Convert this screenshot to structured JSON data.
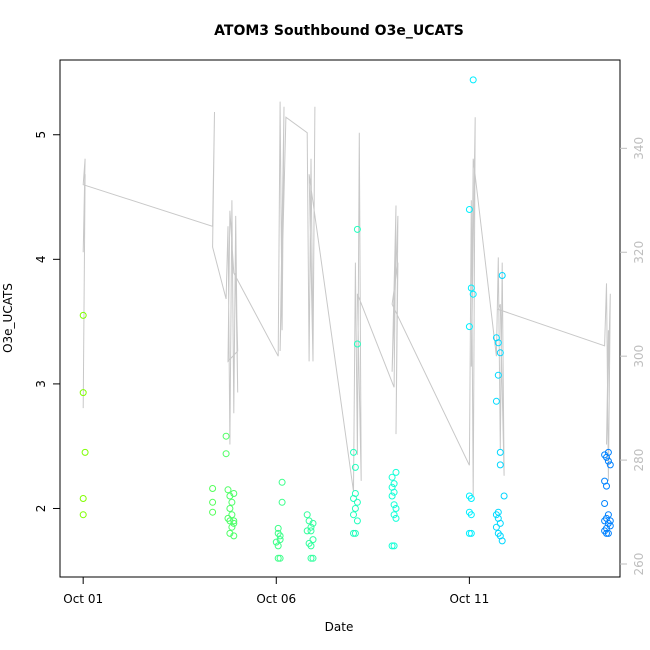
{
  "chart_data": {
    "type": "scatter",
    "title": "ATOM3 Southbound O3e_UCATS",
    "xlabel": "Date",
    "ylabel": "O3e_UCATS",
    "x_ticks": [
      {
        "day": 1,
        "label": "Oct 01"
      },
      {
        "day": 6,
        "label": "Oct 06"
      },
      {
        "day": 11,
        "label": "Oct 11"
      }
    ],
    "y_ticks": [
      2,
      3,
      4,
      5
    ],
    "y2_ticks": [
      260,
      280,
      300,
      320,
      340
    ],
    "xlim": [
      0.4,
      14.9
    ],
    "ylim": [
      1.45,
      5.6
    ],
    "y2lim": [
      257.5,
      357
    ],
    "grid": false,
    "colors": {
      "axis": "#000000",
      "secondary_axis": "#bebebe",
      "altitude_line": "#c8c8c8",
      "points_start": "#80ff00",
      "points_end": "#0080ff"
    },
    "series": [
      {
        "type": "scatter",
        "points": [
          [
            1.0,
            3.55
          ],
          [
            1.0,
            2.93
          ],
          [
            1.05,
            2.45
          ],
          [
            1.0,
            2.08
          ],
          [
            1.0,
            1.95
          ],
          [
            4.35,
            2.16
          ],
          [
            4.35,
            2.05
          ],
          [
            4.35,
            1.97
          ],
          [
            4.7,
            2.58
          ],
          [
            4.7,
            2.44
          ],
          [
            4.75,
            2.15
          ],
          [
            4.8,
            2.1
          ],
          [
            4.85,
            2.05
          ],
          [
            4.8,
            2.0
          ],
          [
            4.85,
            1.95
          ],
          [
            4.75,
            1.92
          ],
          [
            4.8,
            1.9
          ],
          [
            4.9,
            1.9
          ],
          [
            4.85,
            1.85
          ],
          [
            4.8,
            1.8
          ],
          [
            4.9,
            1.78
          ],
          [
            4.9,
            2.12
          ],
          [
            4.9,
            1.88
          ],
          [
            6.05,
            1.8
          ],
          [
            6.1,
            1.75
          ],
          [
            6.0,
            1.73
          ],
          [
            6.05,
            1.7
          ],
          [
            6.1,
            1.78
          ],
          [
            6.05,
            1.84
          ],
          [
            6.1,
            1.6
          ],
          [
            6.05,
            1.6
          ],
          [
            6.15,
            2.21
          ],
          [
            6.15,
            2.05
          ],
          [
            6.8,
            1.95
          ],
          [
            6.85,
            1.9
          ],
          [
            6.9,
            1.85
          ],
          [
            6.95,
            1.88
          ],
          [
            6.9,
            1.82
          ],
          [
            6.95,
            1.75
          ],
          [
            6.85,
            1.72
          ],
          [
            6.9,
            1.7
          ],
          [
            6.95,
            1.6
          ],
          [
            6.9,
            1.6
          ],
          [
            6.8,
            1.82
          ],
          [
            8.0,
            2.45
          ],
          [
            8.05,
            2.33
          ],
          [
            8.05,
            2.12
          ],
          [
            8.0,
            2.08
          ],
          [
            8.1,
            2.05
          ],
          [
            8.05,
            2.0
          ],
          [
            8.0,
            1.95
          ],
          [
            8.1,
            1.9
          ],
          [
            8.0,
            1.8
          ],
          [
            8.05,
            1.8
          ],
          [
            8.1,
            3.32
          ],
          [
            8.1,
            4.24
          ],
          [
            9.0,
            2.25
          ],
          [
            9.05,
            2.2
          ],
          [
            9.0,
            2.17
          ],
          [
            9.05,
            2.13
          ],
          [
            9.0,
            2.1
          ],
          [
            9.05,
            2.03
          ],
          [
            9.1,
            2.0
          ],
          [
            9.05,
            1.95
          ],
          [
            9.1,
            1.92
          ],
          [
            9.0,
            1.7
          ],
          [
            9.05,
            1.7
          ],
          [
            9.1,
            2.29
          ]
        ]
      },
      {
        "type": "scatter",
        "points": [
          [
            11.0,
            4.4
          ],
          [
            11.05,
            3.77
          ],
          [
            11.1,
            3.72
          ],
          [
            11.0,
            3.46
          ],
          [
            11.1,
            5.44
          ],
          [
            11.0,
            2.1
          ],
          [
            11.05,
            2.08
          ],
          [
            11.0,
            1.97
          ],
          [
            11.05,
            1.95
          ],
          [
            11.0,
            1.8
          ],
          [
            11.05,
            1.8
          ],
          [
            11.7,
            3.37
          ],
          [
            11.75,
            3.33
          ],
          [
            11.8,
            3.25
          ],
          [
            11.7,
            2.86
          ],
          [
            11.75,
            3.07
          ],
          [
            11.8,
            2.35
          ],
          [
            11.7,
            1.95
          ],
          [
            11.75,
            1.92
          ],
          [
            11.8,
            1.88
          ],
          [
            11.7,
            1.85
          ],
          [
            11.75,
            1.8
          ],
          [
            11.8,
            1.78
          ],
          [
            11.85,
            1.74
          ],
          [
            11.9,
            2.1
          ],
          [
            11.85,
            3.87
          ],
          [
            11.75,
            1.97
          ],
          [
            11.8,
            2.45
          ]
        ]
      },
      {
        "type": "scatter",
        "points": [
          [
            14.5,
            2.43
          ],
          [
            14.55,
            2.41
          ],
          [
            14.6,
            2.38
          ],
          [
            14.65,
            2.35
          ],
          [
            14.5,
            2.22
          ],
          [
            14.55,
            2.18
          ],
          [
            14.5,
            2.04
          ],
          [
            14.6,
            1.95
          ],
          [
            14.55,
            1.92
          ],
          [
            14.5,
            1.9
          ],
          [
            14.6,
            1.88
          ],
          [
            14.65,
            1.86
          ],
          [
            14.55,
            1.84
          ],
          [
            14.5,
            1.82
          ],
          [
            14.6,
            1.8
          ],
          [
            14.55,
            1.8
          ],
          [
            14.65,
            1.9
          ],
          [
            14.6,
            2.45
          ]
        ]
      },
      {
        "type": "line",
        "axis": "right",
        "points": [
          [
            1.0,
            290
          ],
          [
            1.05,
            335
          ],
          [
            1.0,
            320
          ],
          [
            1.05,
            338
          ],
          [
            1.0,
            333
          ],
          [
            4.35,
            325
          ],
          [
            4.4,
            347
          ],
          [
            4.35,
            321
          ],
          [
            4.7,
            311
          ],
          [
            4.75,
            325
          ],
          [
            4.8,
            283
          ],
          [
            4.85,
            330
          ],
          [
            4.9,
            289
          ],
          [
            4.95,
            327
          ],
          [
            5.0,
            293
          ],
          [
            4.95,
            316
          ],
          [
            5.0,
            301
          ],
          [
            4.75,
            299
          ],
          [
            4.8,
            328
          ],
          [
            4.9,
            316
          ],
          [
            6.05,
            300
          ],
          [
            6.1,
            349
          ],
          [
            6.15,
            305
          ],
          [
            6.2,
            348
          ],
          [
            6.1,
            301
          ],
          [
            6.25,
            346
          ],
          [
            6.8,
            343
          ],
          [
            6.85,
            299
          ],
          [
            6.9,
            338
          ],
          [
            6.95,
            302
          ],
          [
            7.0,
            348
          ],
          [
            6.95,
            299
          ],
          [
            6.85,
            335
          ],
          [
            8.0,
            274
          ],
          [
            8.05,
            318
          ],
          [
            8.1,
            281
          ],
          [
            8.15,
            343
          ],
          [
            8.2,
            276
          ],
          [
            8.1,
            312
          ],
          [
            9.05,
            294
          ],
          [
            9.1,
            329
          ],
          [
            9.0,
            297
          ],
          [
            9.15,
            327
          ],
          [
            9.1,
            285
          ],
          [
            9.15,
            318
          ],
          [
            9.0,
            310
          ],
          [
            11.0,
            279
          ],
          [
            11.05,
            330
          ],
          [
            11.1,
            273
          ],
          [
            11.15,
            346
          ],
          [
            11.05,
            298
          ],
          [
            11.1,
            338
          ],
          [
            11.7,
            300
          ],
          [
            11.75,
            319
          ],
          [
            11.8,
            282
          ],
          [
            11.85,
            318
          ],
          [
            11.9,
            277
          ],
          [
            11.8,
            310
          ],
          [
            11.75,
            309
          ],
          [
            14.5,
            302
          ],
          [
            14.55,
            314
          ],
          [
            14.6,
            276
          ],
          [
            14.65,
            312
          ],
          [
            14.55,
            283
          ],
          [
            14.6,
            305
          ]
        ]
      }
    ],
    "legend": "none"
  }
}
